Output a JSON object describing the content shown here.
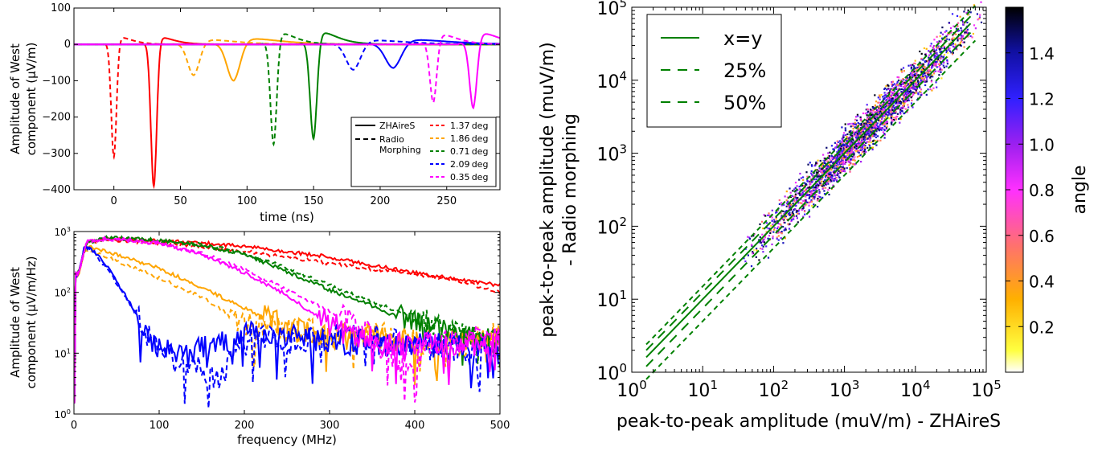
{
  "chart_data": [
    {
      "type": "line",
      "xlabel": "time (ns)",
      "ylabel_lines": [
        "Amplitude of West",
        "component (μV/m)"
      ],
      "xlim": [
        -30,
        290
      ],
      "ylim": [
        -400,
        100
      ],
      "xticks": [
        0,
        50,
        100,
        150,
        200,
        250
      ],
      "yticks": [
        -400,
        -300,
        -200,
        -100,
        0,
        100
      ],
      "legend_style": {
        "solid": "ZHAireS",
        "dashed_lines": [
          "Radio",
          "Morphing"
        ]
      },
      "series": [
        {
          "name": "1.37deg",
          "legend": "1.37 deg",
          "color": "#ff0000",
          "solid": {
            "t0": 30,
            "min": -390,
            "max": 30,
            "width": 2.2
          },
          "dashed": {
            "t0": 0,
            "min": -310,
            "max": 30,
            "width": 2.0
          }
        },
        {
          "name": "1.86deg",
          "legend": "1.86 deg",
          "color": "#ffa500",
          "solid": {
            "t0": 90,
            "min": -100,
            "max": 25,
            "width": 5.0
          },
          "dashed": {
            "t0": 60,
            "min": -85,
            "max": 20,
            "width": 4.5
          }
        },
        {
          "name": "0.71deg",
          "legend": "0.71 deg",
          "color": "#008000",
          "solid": {
            "t0": 150,
            "min": -260,
            "max": 52,
            "width": 2.6
          },
          "dashed": {
            "t0": 120,
            "min": -275,
            "max": 48,
            "width": 2.4
          }
        },
        {
          "name": "2.09deg",
          "legend": "2.09 deg",
          "color": "#0000ff",
          "solid": {
            "t0": 210,
            "min": -65,
            "max": 20,
            "width": 6.0
          },
          "dashed": {
            "t0": 180,
            "min": -70,
            "max": 18,
            "width": 5.5
          }
        },
        {
          "name": "0.35deg",
          "legend": "0.35 deg",
          "color": "#ff00ff",
          "solid": {
            "t0": 270,
            "min": -175,
            "max": 48,
            "width": 2.8
          },
          "dashed": {
            "t0": 240,
            "min": -160,
            "max": 42,
            "width": 2.6
          }
        }
      ]
    },
    {
      "type": "line",
      "xlabel": "frequency (MHz)",
      "ylabel_lines": [
        "Amplitude of West",
        "component (μV/m/Hz)"
      ],
      "xlim": [
        0,
        500
      ],
      "ylim": [
        1,
        1000
      ],
      "yscale": "log",
      "xticks": [
        0,
        100,
        200,
        300,
        400,
        500
      ],
      "yticks": [
        1,
        10,
        100,
        1000
      ],
      "series": [
        {
          "name": "1.37deg",
          "color": "#ff0000",
          "solid_points": [
            [
              5,
              200
            ],
            [
              15,
              680
            ],
            [
              40,
              760
            ],
            [
              100,
              700
            ],
            [
              150,
              650
            ],
            [
              200,
              570
            ],
            [
              250,
              470
            ],
            [
              300,
              380
            ],
            [
              350,
              280
            ],
            [
              400,
              210
            ],
            [
              450,
              165
            ],
            [
              500,
              130
            ]
          ],
          "dashed_points": [
            [
              5,
              200
            ],
            [
              15,
              660
            ],
            [
              40,
              730
            ],
            [
              100,
              640
            ],
            [
              150,
              560
            ],
            [
              200,
              470
            ],
            [
              250,
              380
            ],
            [
              300,
              300
            ],
            [
              350,
              240
            ],
            [
              400,
              200
            ],
            [
              450,
              160
            ],
            [
              480,
              120
            ],
            [
              500,
              100
            ]
          ]
        },
        {
          "name": "1.86deg",
          "color": "#ffa500",
          "solid_points": [
            [
              5,
              180
            ],
            [
              12,
              520
            ],
            [
              20,
              560
            ],
            [
              50,
              420
            ],
            [
              100,
              250
            ],
            [
              150,
              120
            ],
            [
              200,
              55
            ],
            [
              240,
              30
            ],
            [
              280,
              20
            ],
            [
              350,
              18
            ],
            [
              400,
              15
            ],
            [
              450,
              17
            ],
            [
              500,
              16
            ]
          ],
          "dashed_points": [
            [
              5,
              180
            ],
            [
              12,
              480
            ],
            [
              20,
              500
            ],
            [
              50,
              330
            ],
            [
              100,
              170
            ],
            [
              150,
              85
            ],
            [
              190,
              35
            ],
            [
              230,
              25
            ],
            [
              300,
              22
            ],
            [
              350,
              20
            ],
            [
              400,
              16
            ],
            [
              450,
              14
            ],
            [
              500,
              20
            ]
          ]
        },
        {
          "name": "0.71deg",
          "color": "#008000",
          "solid_points": [
            [
              5,
              200
            ],
            [
              15,
              690
            ],
            [
              40,
              790
            ],
            [
              100,
              720
            ],
            [
              150,
              600
            ],
            [
              200,
              420
            ],
            [
              250,
              220
            ],
            [
              300,
              110
            ],
            [
              350,
              60
            ],
            [
              400,
              30
            ],
            [
              450,
              18
            ],
            [
              500,
              15
            ]
          ],
          "dashed_points": [
            [
              5,
              200
            ],
            [
              15,
              670
            ],
            [
              40,
              770
            ],
            [
              100,
              700
            ],
            [
              150,
              610
            ],
            [
              200,
              440
            ],
            [
              250,
              250
            ],
            [
              300,
              130
            ],
            [
              350,
              70
            ],
            [
              400,
              38
            ],
            [
              450,
              20
            ],
            [
              500,
              14
            ]
          ]
        },
        {
          "name": "2.09deg",
          "color": "#0000ff",
          "solid_points": [
            [
              5,
              180
            ],
            [
              12,
              560
            ],
            [
              20,
              520
            ],
            [
              40,
              260
            ],
            [
              60,
              90
            ],
            [
              80,
              30
            ],
            [
              100,
              12
            ],
            [
              125,
              8
            ],
            [
              150,
              12
            ],
            [
              180,
              16
            ],
            [
              210,
              20
            ],
            [
              250,
              18
            ],
            [
              300,
              16
            ],
            [
              350,
              15
            ],
            [
              400,
              14
            ],
            [
              450,
              12
            ],
            [
              500,
              11
            ]
          ],
          "dashed_points": [
            [
              5,
              180
            ],
            [
              12,
              540
            ],
            [
              20,
              500
            ],
            [
              40,
              240
            ],
            [
              60,
              85
            ],
            [
              80,
              28
            ],
            [
              100,
              11
            ],
            [
              125,
              7
            ],
            [
              150,
              6
            ],
            [
              170,
              3
            ],
            [
              190,
              12
            ],
            [
              220,
              20
            ],
            [
              260,
              15
            ],
            [
              300,
              20
            ],
            [
              350,
              18
            ],
            [
              400,
              13
            ],
            [
              450,
              12
            ],
            [
              500,
              10
            ]
          ]
        },
        {
          "name": "0.35deg",
          "color": "#ff00ff",
          "solid_points": [
            [
              5,
              200
            ],
            [
              15,
              690
            ],
            [
              40,
              770
            ],
            [
              100,
              650
            ],
            [
              150,
              420
            ],
            [
              200,
              210
            ],
            [
              250,
              90
            ],
            [
              280,
              45
            ],
            [
              320,
              22
            ],
            [
              360,
              15
            ],
            [
              400,
              15
            ],
            [
              450,
              14
            ],
            [
              500,
              15
            ]
          ],
          "dashed_points": [
            [
              5,
              200
            ],
            [
              15,
              670
            ],
            [
              40,
              750
            ],
            [
              100,
              640
            ],
            [
              150,
              440
            ],
            [
              200,
              240
            ],
            [
              250,
              110
            ],
            [
              300,
              50
            ],
            [
              340,
              25
            ],
            [
              370,
              10
            ],
            [
              390,
              6
            ],
            [
              420,
              14
            ],
            [
              460,
              17
            ],
            [
              500,
              18
            ]
          ]
        }
      ]
    },
    {
      "type": "scatter",
      "xlabel": "peak-to-peak amplitude (muV/m) - ZHAireS",
      "ylabel_lines": [
        "peak-to-peak amplitude (muV/m)",
        "- Radio morphing"
      ],
      "xscale": "log",
      "yscale": "log",
      "xlim": [
        1,
        100000
      ],
      "ylim": [
        1,
        100000
      ],
      "xtick_labels": [
        "10^0",
        "10^1",
        "10^2",
        "10^3",
        "10^4",
        "10^5"
      ],
      "ytick_labels": [
        "10^0",
        "10^1",
        "10^2",
        "10^3",
        "10^4",
        "10^5"
      ],
      "legend": {
        "placement": "top-left",
        "entries": [
          "x=y",
          "25%",
          "50%"
        ]
      },
      "line_color": "#008000",
      "point_cloud": {
        "x_range": [
          7,
          90000
        ],
        "relative_spread": 0.25,
        "n_points": 2600
      },
      "colorbar": {
        "label": "angle",
        "range": [
          0.0,
          1.6
        ],
        "ticks": [
          "0.2",
          "0.4",
          "0.6",
          "0.8",
          "1.0",
          "1.2",
          "1.4"
        ]
      }
    }
  ]
}
